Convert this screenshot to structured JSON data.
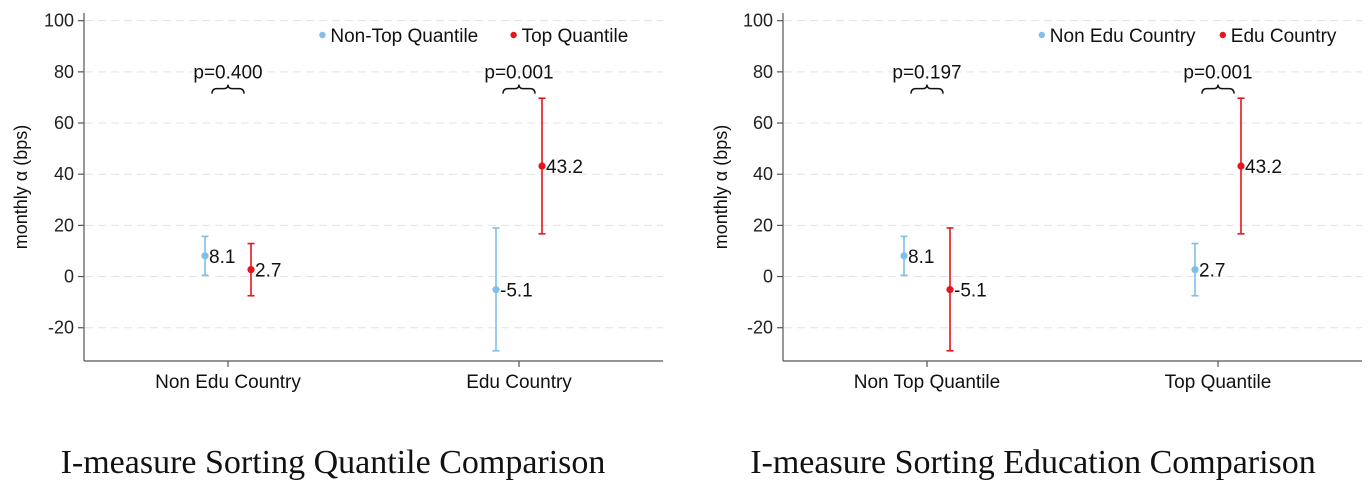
{
  "chart_data": [
    {
      "type": "scatter",
      "subtype": "point-with-error-bars",
      "title": "I-measure Sorting Quantile Comparison",
      "xlabel": "",
      "ylabel": "monthly α (bps)",
      "ylim": [
        -33,
        103
      ],
      "yticks": [
        100,
        80,
        60,
        40,
        20,
        0,
        -20
      ],
      "ytick_labels": [
        "100",
        "80",
        "60",
        "40",
        "20",
        "0",
        "-20"
      ],
      "grid": true,
      "legend_position": "top-right",
      "categories": [
        "Non Edu Country",
        "Edu Country"
      ],
      "series": [
        {
          "name": "Non-Top Quantile",
          "color": "#7fbfe8",
          "points": [
            {
              "category": "Non Edu Country",
              "value": 8.1,
              "lower": 0.5,
              "upper": 15.7,
              "label": "8.1"
            },
            {
              "category": "Edu Country",
              "value": -5.1,
              "lower": -29.0,
              "upper": 19.0,
              "label": "-5.1"
            }
          ]
        },
        {
          "name": "Top Quantile",
          "color": "#e8141c",
          "points": [
            {
              "category": "Non Edu Country",
              "value": 2.7,
              "lower": -7.5,
              "upper": 12.9,
              "label": "2.7"
            },
            {
              "category": "Edu Country",
              "value": 43.2,
              "lower": 16.7,
              "upper": 69.7,
              "label": "43.2"
            }
          ]
        }
      ],
      "annotations": [
        {
          "category": "Non Edu Country",
          "text": "p=0.400",
          "value": 75
        },
        {
          "category": "Edu Country",
          "text": "p=0.001",
          "value": 75
        }
      ]
    },
    {
      "type": "scatter",
      "subtype": "point-with-error-bars",
      "title": "I-measure Sorting Education Comparison",
      "xlabel": "",
      "ylabel": "monthly α (bps)",
      "ylim": [
        -33,
        103
      ],
      "yticks": [
        100,
        80,
        60,
        40,
        20,
        0,
        -20
      ],
      "ytick_labels": [
        "100",
        "80",
        "60",
        "40",
        "20",
        "0",
        "-20"
      ],
      "grid": true,
      "legend_position": "top-right",
      "categories": [
        "Non Top Quantile",
        "Top Quantile"
      ],
      "series": [
        {
          "name": "Non Edu Country",
          "color": "#7fbfe8",
          "points": [
            {
              "category": "Non Top Quantile",
              "value": 8.1,
              "lower": 0.5,
              "upper": 15.7,
              "label": "8.1"
            },
            {
              "category": "Top Quantile",
              "value": 2.7,
              "lower": -7.5,
              "upper": 12.9,
              "label": "2.7"
            }
          ]
        },
        {
          "name": "Edu Country",
          "color": "#e8141c",
          "points": [
            {
              "category": "Non Top Quantile",
              "value": -5.1,
              "lower": -29.0,
              "upper": 19.0,
              "label": "-5.1"
            },
            {
              "category": "Top Quantile",
              "value": 43.2,
              "lower": 16.7,
              "upper": 69.7,
              "label": "43.2"
            }
          ]
        }
      ],
      "annotations": [
        {
          "category": "Non Top Quantile",
          "text": "p=0.197",
          "value": 75
        },
        {
          "category": "Top Quantile",
          "text": "p=0.001",
          "value": 75
        }
      ]
    }
  ]
}
